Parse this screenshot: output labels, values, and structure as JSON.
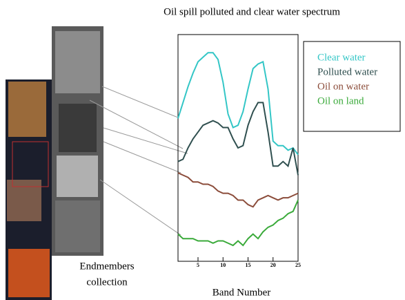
{
  "chart_data": {
    "type": "line",
    "title": "Oil spill polluted and clear water spectrum",
    "x_label": "Band Number",
    "annotations": [
      "Endmembers",
      "collection"
    ],
    "x": [
      1,
      2,
      3,
      4,
      5,
      6,
      7,
      8,
      9,
      10,
      11,
      12,
      13,
      14,
      15,
      16,
      17,
      18,
      19,
      20,
      21,
      22,
      23,
      24,
      25
    ],
    "xlim": [
      1,
      25
    ],
    "xticks": [
      5,
      10,
      15,
      20,
      25
    ],
    "ylim": [
      0,
      100
    ],
    "series": [
      {
        "name": "Clear water",
        "color": "#33c6c6",
        "values": [
          63,
          70,
          77,
          83,
          88,
          90,
          92,
          92,
          89,
          79,
          65,
          59,
          60,
          66,
          76,
          85,
          87,
          88,
          76,
          53,
          51,
          51,
          49,
          50,
          47
        ]
      },
      {
        "name": "Polluted water",
        "color": "#2f4f4f",
        "values": [
          44,
          45,
          50,
          54,
          57,
          60,
          61,
          62,
          61,
          59,
          59,
          54,
          50,
          51,
          60,
          66,
          70,
          70,
          57,
          42,
          42,
          44,
          42,
          50,
          38
        ]
      },
      {
        "name": "Oil on water",
        "color": "#8b4c3a",
        "values": [
          39,
          38,
          37,
          35,
          35,
          34,
          34,
          33,
          31,
          30,
          30,
          29,
          27,
          27,
          25,
          24,
          27,
          28,
          29,
          28,
          27,
          28,
          28,
          29,
          30
        ]
      },
      {
        "name": "Oil on land",
        "color": "#3aaa3a",
        "values": [
          12,
          10,
          10,
          10,
          9,
          9,
          9,
          8,
          9,
          9,
          8,
          7,
          9,
          7,
          10,
          12,
          10,
          13,
          15,
          16,
          18,
          19,
          21,
          22,
          27
        ]
      }
    ]
  }
}
